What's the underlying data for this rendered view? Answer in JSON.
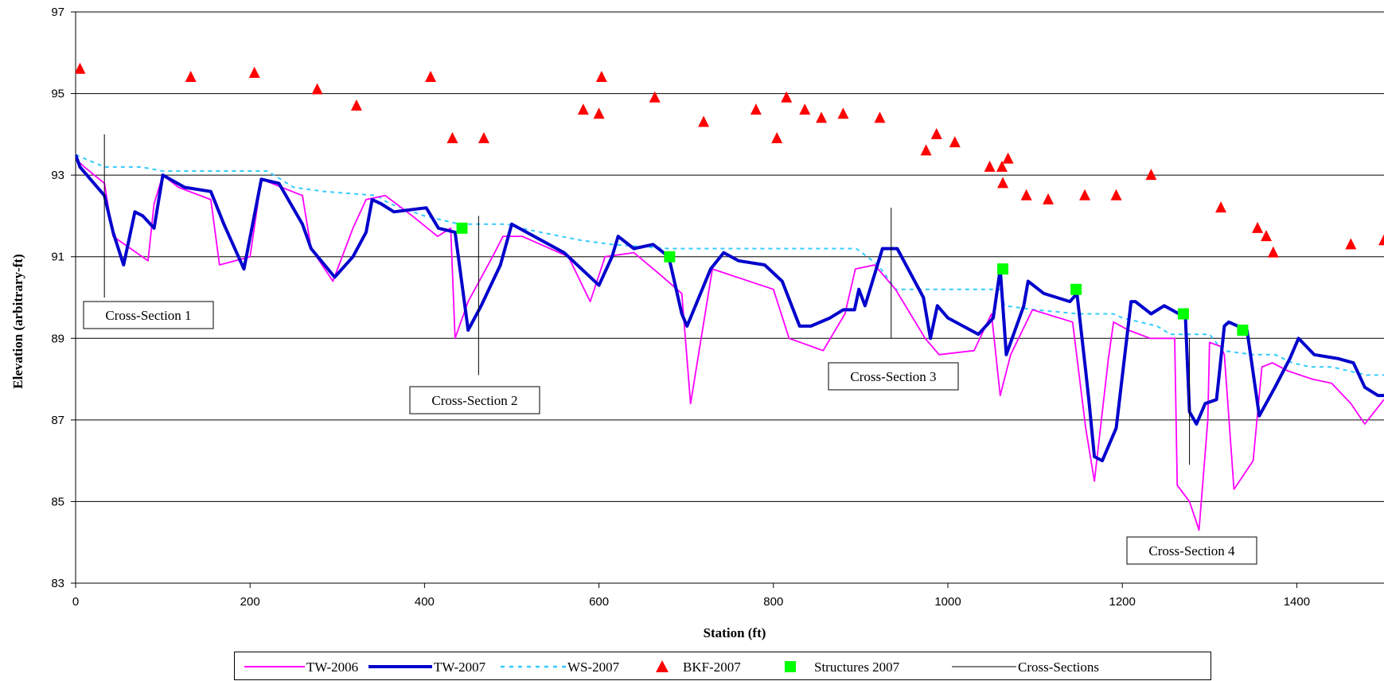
{
  "chart_data": {
    "type": "line",
    "xlabel": "Station (ft)",
    "ylabel": "Elevation (arbitrary-ft)",
    "xlim": [
      0,
      1500
    ],
    "ylim": [
      83,
      97
    ],
    "x_ticks": [
      0,
      200,
      400,
      600,
      800,
      1000,
      1200,
      1400
    ],
    "y_ticks": [
      83,
      85,
      87,
      89,
      91,
      93,
      95,
      97
    ],
    "grid": "horizontal",
    "legend_position": "bottom",
    "colors": {
      "tw2006": "#ff00ff",
      "tw2007": "#0000cc",
      "ws2007": "#33ccff",
      "bkf2007": "#ff0000",
      "structures2007": "#00ff00",
      "cross_sections": "#000000"
    },
    "legend_labels": [
      "TW-2006",
      "TW-2007",
      "WS-2007",
      "BKF-2007",
      "Structures 2007",
      "Cross-Sections"
    ],
    "series": [
      {
        "name": "TW-2006",
        "style": "line",
        "points": [
          [
            0,
            93.4
          ],
          [
            10,
            93.2
          ],
          [
            33,
            92.8
          ],
          [
            43,
            91.5
          ],
          [
            83,
            90.9
          ],
          [
            90,
            92.3
          ],
          [
            100,
            93.0
          ],
          [
            118,
            92.7
          ],
          [
            155,
            92.4
          ],
          [
            165,
            90.8
          ],
          [
            200,
            91.0
          ],
          [
            213,
            92.9
          ],
          [
            260,
            92.5
          ],
          [
            270,
            91.2
          ],
          [
            295,
            90.4
          ],
          [
            318,
            91.7
          ],
          [
            333,
            92.4
          ],
          [
            355,
            92.5
          ],
          [
            386,
            92.0
          ],
          [
            415,
            91.5
          ],
          [
            430,
            91.7
          ],
          [
            435,
            89.0
          ],
          [
            450,
            89.9
          ],
          [
            478,
            91.0
          ],
          [
            490,
            91.5
          ],
          [
            512,
            91.5
          ],
          [
            565,
            91.0
          ],
          [
            590,
            89.9
          ],
          [
            607,
            91.0
          ],
          [
            640,
            91.1
          ],
          [
            668,
            90.6
          ],
          [
            695,
            90.1
          ],
          [
            705,
            87.4
          ],
          [
            730,
            90.7
          ],
          [
            800,
            90.2
          ],
          [
            818,
            89.0
          ],
          [
            857,
            88.7
          ],
          [
            882,
            89.6
          ],
          [
            894,
            90.7
          ],
          [
            916,
            90.8
          ],
          [
            940,
            90.2
          ],
          [
            974,
            89.0
          ],
          [
            990,
            88.6
          ],
          [
            1030,
            88.7
          ],
          [
            1050,
            89.6
          ],
          [
            1060,
            87.6
          ],
          [
            1072,
            88.6
          ],
          [
            1097,
            89.7
          ],
          [
            1143,
            89.4
          ],
          [
            1158,
            86.8
          ],
          [
            1168,
            85.5
          ],
          [
            1184,
            88.5
          ],
          [
            1190,
            89.4
          ],
          [
            1207,
            89.2
          ],
          [
            1232,
            89.0
          ],
          [
            1260,
            89.0
          ],
          [
            1263,
            85.4
          ],
          [
            1277,
            85.0
          ],
          [
            1288,
            84.3
          ],
          [
            1298,
            87.0
          ],
          [
            1300,
            88.9
          ],
          [
            1313,
            88.8
          ],
          [
            1317,
            88.6
          ],
          [
            1328,
            85.3
          ],
          [
            1350,
            86.0
          ],
          [
            1360,
            88.3
          ],
          [
            1372,
            88.4
          ],
          [
            1390,
            88.2
          ],
          [
            1418,
            88.0
          ],
          [
            1440,
            87.9
          ],
          [
            1462,
            87.4
          ],
          [
            1478,
            86.9
          ],
          [
            1500,
            87.5
          ]
        ]
      },
      {
        "name": "TW-2007",
        "style": "line",
        "points": [
          [
            0,
            93.5
          ],
          [
            5,
            93.2
          ],
          [
            33,
            92.5
          ],
          [
            43,
            91.6
          ],
          [
            55,
            90.8
          ],
          [
            68,
            92.1
          ],
          [
            77,
            92.0
          ],
          [
            90,
            91.7
          ],
          [
            100,
            93.0
          ],
          [
            125,
            92.7
          ],
          [
            155,
            92.6
          ],
          [
            170,
            91.8
          ],
          [
            193,
            90.7
          ],
          [
            213,
            92.9
          ],
          [
            233,
            92.8
          ],
          [
            260,
            91.8
          ],
          [
            270,
            91.2
          ],
          [
            297,
            90.5
          ],
          [
            318,
            91.0
          ],
          [
            333,
            91.6
          ],
          [
            340,
            92.4
          ],
          [
            350,
            92.3
          ],
          [
            365,
            92.1
          ],
          [
            402,
            92.2
          ],
          [
            416,
            91.7
          ],
          [
            435,
            91.6
          ],
          [
            450,
            89.2
          ],
          [
            465,
            89.8
          ],
          [
            487,
            90.8
          ],
          [
            500,
            91.8
          ],
          [
            560,
            91.1
          ],
          [
            600,
            90.3
          ],
          [
            615,
            91.0
          ],
          [
            622,
            91.5
          ],
          [
            640,
            91.2
          ],
          [
            662,
            91.3
          ],
          [
            680,
            91.0
          ],
          [
            695,
            89.6
          ],
          [
            701,
            89.3
          ],
          [
            728,
            90.7
          ],
          [
            743,
            91.1
          ],
          [
            760,
            90.9
          ],
          [
            790,
            90.8
          ],
          [
            810,
            90.4
          ],
          [
            830,
            89.3
          ],
          [
            843,
            89.3
          ],
          [
            865,
            89.5
          ],
          [
            880,
            89.7
          ],
          [
            893,
            89.7
          ],
          [
            898,
            90.2
          ],
          [
            905,
            89.8
          ],
          [
            925,
            91.2
          ],
          [
            942,
            91.2
          ],
          [
            972,
            90.0
          ],
          [
            980,
            89.0
          ],
          [
            988,
            89.8
          ],
          [
            1000,
            89.5
          ],
          [
            1035,
            89.1
          ],
          [
            1052,
            89.5
          ],
          [
            1060,
            90.7
          ],
          [
            1067,
            88.6
          ],
          [
            1087,
            89.8
          ],
          [
            1092,
            90.4
          ],
          [
            1110,
            90.1
          ],
          [
            1140,
            89.9
          ],
          [
            1148,
            90.1
          ],
          [
            1158,
            88.2
          ],
          [
            1162,
            87.4
          ],
          [
            1168,
            86.1
          ],
          [
            1177,
            86.0
          ],
          [
            1193,
            86.8
          ],
          [
            1210,
            89.9
          ],
          [
            1215,
            89.9
          ],
          [
            1233,
            89.6
          ],
          [
            1248,
            89.8
          ],
          [
            1265,
            89.6
          ],
          [
            1272,
            89.7
          ],
          [
            1277,
            87.2
          ],
          [
            1285,
            86.9
          ],
          [
            1295,
            87.4
          ],
          [
            1308,
            87.5
          ],
          [
            1317,
            89.3
          ],
          [
            1322,
            89.4
          ],
          [
            1343,
            89.2
          ],
          [
            1357,
            87.1
          ],
          [
            1375,
            87.8
          ],
          [
            1392,
            88.5
          ],
          [
            1402,
            89.0
          ],
          [
            1420,
            88.6
          ],
          [
            1448,
            88.5
          ],
          [
            1465,
            88.4
          ],
          [
            1478,
            87.8
          ],
          [
            1493,
            87.6
          ],
          [
            1500,
            87.6
          ]
        ]
      },
      {
        "name": "WS-2007",
        "style": "dashed",
        "points": [
          [
            0,
            93.5
          ],
          [
            33,
            93.2
          ],
          [
            75,
            93.2
          ],
          [
            100,
            93.1
          ],
          [
            220,
            93.1
          ],
          [
            250,
            92.7
          ],
          [
            285,
            92.6
          ],
          [
            345,
            92.5
          ],
          [
            360,
            92.3
          ],
          [
            400,
            92.0
          ],
          [
            440,
            91.8
          ],
          [
            495,
            91.8
          ],
          [
            510,
            91.7
          ],
          [
            580,
            91.4
          ],
          [
            615,
            91.3
          ],
          [
            680,
            91.2
          ],
          [
            705,
            91.2
          ],
          [
            800,
            91.2
          ],
          [
            895,
            91.2
          ],
          [
            920,
            90.8
          ],
          [
            940,
            90.2
          ],
          [
            1005,
            90.2
          ],
          [
            1060,
            90.2
          ],
          [
            1065,
            89.8
          ],
          [
            1100,
            89.7
          ],
          [
            1150,
            89.6
          ],
          [
            1190,
            89.6
          ],
          [
            1200,
            89.5
          ],
          [
            1240,
            89.3
          ],
          [
            1255,
            89.1
          ],
          [
            1300,
            89.1
          ],
          [
            1315,
            88.7
          ],
          [
            1350,
            88.6
          ],
          [
            1375,
            88.6
          ],
          [
            1395,
            88.4
          ],
          [
            1415,
            88.3
          ],
          [
            1440,
            88.3
          ],
          [
            1460,
            88.2
          ],
          [
            1480,
            88.1
          ],
          [
            1500,
            88.1
          ]
        ]
      },
      {
        "name": "BKF-2007",
        "style": "triangle",
        "points": [
          [
            5,
            95.6
          ],
          [
            132,
            95.4
          ],
          [
            205,
            95.5
          ],
          [
            277,
            95.1
          ],
          [
            322,
            94.7
          ],
          [
            407,
            95.4
          ],
          [
            432,
            93.9
          ],
          [
            468,
            93.9
          ],
          [
            582,
            94.6
          ],
          [
            603,
            95.4
          ],
          [
            600,
            94.5
          ],
          [
            664,
            94.9
          ],
          [
            720,
            94.3
          ],
          [
            780,
            94.6
          ],
          [
            804,
            93.9
          ],
          [
            815,
            94.9
          ],
          [
            836,
            94.6
          ],
          [
            855,
            94.4
          ],
          [
            880,
            94.5
          ],
          [
            922,
            94.4
          ],
          [
            975,
            93.6
          ],
          [
            987,
            94.0
          ],
          [
            1008,
            93.8
          ],
          [
            1048,
            93.2
          ],
          [
            1062,
            93.2
          ],
          [
            1063,
            92.8
          ],
          [
            1069,
            93.4
          ],
          [
            1090,
            92.5
          ],
          [
            1115,
            92.4
          ],
          [
            1157,
            92.5
          ],
          [
            1193,
            92.5
          ],
          [
            1233,
            93.0
          ],
          [
            1313,
            92.2
          ],
          [
            1355,
            91.7
          ],
          [
            1365,
            91.5
          ],
          [
            1373,
            91.1
          ],
          [
            1462,
            91.3
          ],
          [
            1500,
            91.4
          ]
        ]
      },
      {
        "name": "Structures 2007",
        "style": "square",
        "points": [
          [
            443,
            91.7
          ],
          [
            681,
            91.0
          ],
          [
            1063,
            90.7
          ],
          [
            1147,
            90.2
          ],
          [
            1270,
            89.6
          ],
          [
            1338,
            89.2
          ]
        ]
      }
    ],
    "cross_sections": [
      {
        "label": "Cross-Section 1",
        "x": 33,
        "y_top": 94.0,
        "y_bottom": 90.0
      },
      {
        "label": "Cross-Section 2",
        "x": 462,
        "y_top": 92.0,
        "y_bottom": 88.1
      },
      {
        "label": "Cross-Section 3",
        "x": 935,
        "y_top": 92.2,
        "y_bottom": 89.0
      },
      {
        "label": "Cross-Section 4",
        "x": 1277,
        "y_top": 89.0,
        "y_bottom": 85.9
      }
    ]
  }
}
